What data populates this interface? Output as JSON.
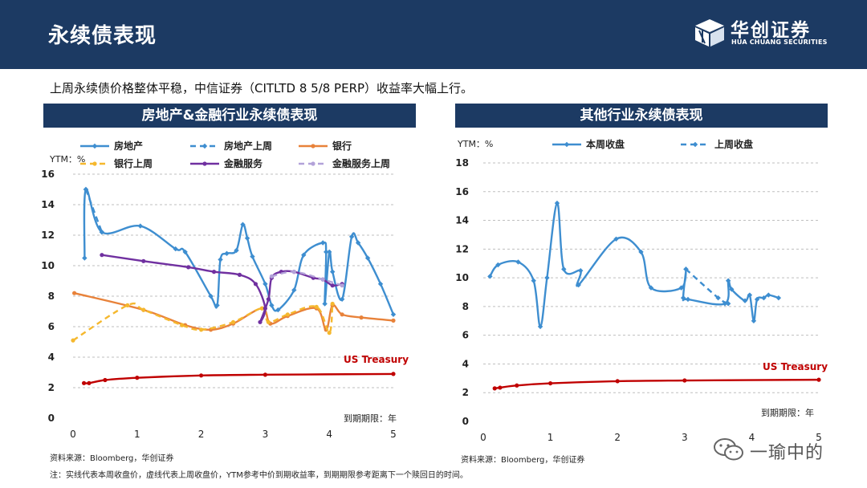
{
  "page": {
    "title": "永续债表现",
    "summary": "上周永续债价格整体平稳，中信证券（CITLTD 8 5/8 PERP）收益率大幅上行。",
    "logo_cn": "华创证券",
    "logo_en": "HUA CHUANG SECURITIES",
    "source_left": "资料来源：Bloomberg，华创证券",
    "source_right": "资料来源：Bloomberg，华创证券",
    "note": "注：实线代表本周收盘价，虚线代表上周收盘价，YTM参考中价到期收益率，到期期限参考距离下一个赎回日的时间。",
    "watermark": "一瑜中的"
  },
  "colors": {
    "header_bg": "#1c3a63",
    "property": "#3e8ed0",
    "bank": "#e8823a",
    "bank_last": "#f5b82e",
    "finance": "#7030a0",
    "finance_last": "#b3a2d9",
    "treasury": "#c00000"
  },
  "chart_data": [
    {
      "type": "line",
      "title": "房地产&金融行业永续债表现",
      "ylabel": "YTM：%",
      "xlabel": "到期期限：年",
      "xlim": [
        0,
        5
      ],
      "ylim": [
        0,
        16
      ],
      "xticks": [
        0,
        1,
        2,
        3,
        4,
        5
      ],
      "yticks": [
        0,
        2,
        4,
        6,
        8,
        10,
        12,
        14,
        16
      ],
      "annotation": "US Treasury",
      "series": [
        {
          "name": "房地产",
          "key": "property",
          "dash": false,
          "marker": "diamond",
          "x": [
            0.18,
            0.2,
            0.45,
            1.05,
            1.6,
            1.75,
            2.15,
            2.25,
            2.3,
            2.4,
            2.55,
            2.65,
            2.72,
            2.8,
            3.0,
            3.1,
            3.2,
            3.45,
            3.6,
            3.9,
            3.95,
            3.93,
            4.0,
            4.05,
            4.2,
            4.35,
            4.45,
            4.6,
            4.8,
            5.0
          ],
          "y": [
            10.5,
            15.0,
            12.2,
            12.6,
            11.1,
            10.9,
            8.0,
            7.4,
            10.4,
            10.8,
            11.0,
            12.7,
            11.8,
            10.6,
            8.8,
            7.4,
            7.1,
            8.4,
            10.7,
            11.5,
            10.9,
            7.5,
            10.9,
            9.6,
            7.8,
            11.9,
            11.5,
            10.5,
            8.8,
            6.8
          ]
        },
        {
          "name": "房地产上周",
          "key": "property",
          "dash": true,
          "marker": "diamond",
          "x": [
            0.2,
            0.45
          ],
          "y": [
            15.0,
            12.2
          ]
        },
        {
          "name": "银行",
          "key": "bank",
          "dash": false,
          "marker": "circle",
          "x": [
            0.02,
            1.1,
            1.75,
            2.15,
            2.5,
            2.95,
            3.08,
            3.35,
            3.8,
            3.95,
            4.05,
            4.2,
            4.5,
            5.0
          ],
          "y": [
            8.2,
            7.1,
            6.1,
            5.8,
            6.2,
            7.2,
            6.2,
            6.7,
            7.2,
            5.8,
            7.4,
            6.8,
            6.6,
            6.4
          ]
        },
        {
          "name": "银行上周",
          "key": "bank_last",
          "dash": true,
          "marker": "circle",
          "x": [
            0.0,
            0.85,
            1.1,
            1.7,
            2.0,
            2.5,
            2.95,
            3.05,
            3.35,
            3.8,
            4.0,
            4.05
          ],
          "y": [
            5.1,
            7.4,
            7.1,
            6.1,
            5.8,
            6.3,
            7.2,
            6.3,
            6.8,
            7.3,
            5.6,
            7.5
          ]
        },
        {
          "name": "金融服务",
          "key": "finance",
          "dash": false,
          "marker": "circle",
          "x": [
            0.45,
            1.1,
            1.8,
            2.2,
            2.6,
            2.85,
            3.0,
            2.92,
            3.05,
            3.1,
            3.25,
            3.45,
            3.75,
            3.9,
            4.05,
            4.2
          ],
          "y": [
            10.7,
            10.3,
            9.9,
            9.6,
            9.4,
            8.8,
            7.2,
            6.3,
            7.8,
            9.2,
            9.6,
            9.6,
            9.2,
            9.1,
            8.7,
            8.8
          ]
        },
        {
          "name": "金融服务上周",
          "key": "finance_last",
          "dash": true,
          "marker": "circle",
          "x": [
            3.1,
            3.45,
            3.9,
            4.2
          ],
          "y": [
            9.3,
            9.6,
            9.1,
            8.7
          ]
        },
        {
          "name": "US Treasury",
          "key": "treasury",
          "dash": false,
          "marker": "circle",
          "legend": false,
          "x": [
            0.17,
            0.25,
            0.5,
            1.0,
            2.0,
            3.0,
            5.0
          ],
          "y": [
            2.3,
            2.3,
            2.5,
            2.65,
            2.8,
            2.85,
            2.9
          ]
        }
      ]
    },
    {
      "type": "line",
      "title": "其他行业永续债表现",
      "ylabel": "YTM：%",
      "xlabel": "到期期限：年",
      "xlim": [
        0,
        5
      ],
      "ylim": [
        0,
        18
      ],
      "xticks": [
        0,
        1,
        2,
        3,
        4,
        5
      ],
      "yticks": [
        0,
        2,
        4,
        6,
        8,
        10,
        12,
        14,
        16,
        18
      ],
      "annotation": "US Treasury",
      "series": [
        {
          "name": "本周收盘",
          "key": "property",
          "dash": false,
          "marker": "diamond",
          "x": [
            0.1,
            0.22,
            0.52,
            0.75,
            0.85,
            0.95,
            1.1,
            1.2,
            1.45,
            1.42,
            1.98,
            2.35,
            2.5,
            2.95,
            3.02,
            2.98,
            3.05,
            3.6,
            3.65,
            3.7,
            3.9,
            3.97,
            4.03,
            4.08,
            4.18,
            4.25,
            4.4
          ],
          "y": [
            10.1,
            10.9,
            11.1,
            9.8,
            6.6,
            10.0,
            15.2,
            10.6,
            10.5,
            9.5,
            12.7,
            11.8,
            9.3,
            9.3,
            10.6,
            8.6,
            8.5,
            8.2,
            9.8,
            9.2,
            8.4,
            8.8,
            7.0,
            8.5,
            8.6,
            8.8,
            8.6
          ]
        },
        {
          "name": "上周收盘",
          "key": "property",
          "dash": true,
          "marker": "diamond",
          "x": [
            3.02,
            3.5,
            3.65
          ],
          "y": [
            10.6,
            8.6,
            8.2
          ]
        },
        {
          "name": "US Treasury",
          "key": "treasury",
          "dash": false,
          "marker": "circle",
          "legend": false,
          "x": [
            0.17,
            0.25,
            0.5,
            1.0,
            2.0,
            3.0,
            5.0
          ],
          "y": [
            2.3,
            2.35,
            2.5,
            2.65,
            2.8,
            2.85,
            2.9
          ]
        }
      ]
    }
  ]
}
